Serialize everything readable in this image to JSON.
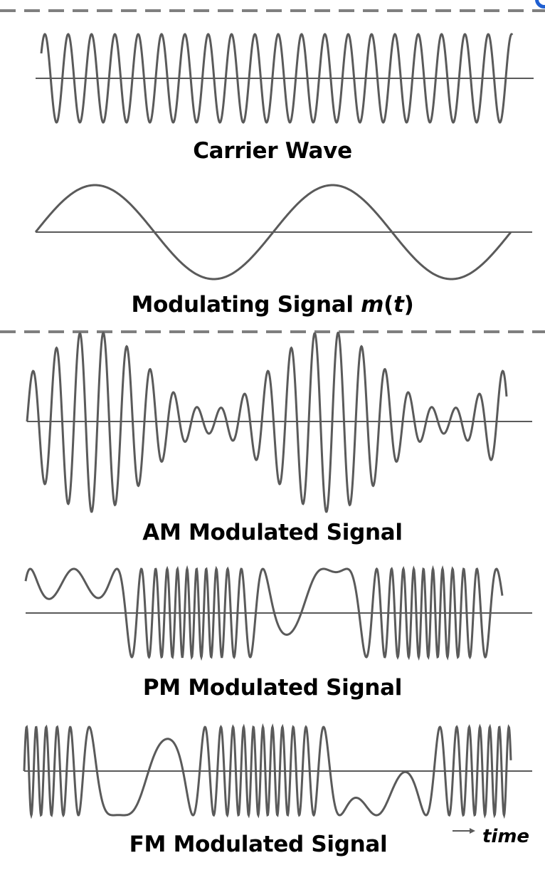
{
  "panels": {
    "carrier": {
      "label": "Carrier Wave"
    },
    "modulating": {
      "label_text": "Modulating Signal ",
      "label_m": "m",
      "label_open": "(",
      "label_t": "t",
      "label_close": ")"
    },
    "am": {
      "label": "AM Modulated Signal"
    },
    "pm": {
      "label": "PM Modulated Signal"
    },
    "fm": {
      "label": "FM Modulated Signal"
    }
  },
  "time_axis": {
    "label": "time"
  },
  "colors": {
    "wave": "#5a5a5a",
    "axis": "#5a5a5a",
    "divider": "#7f7f7f",
    "accent": "#1f5fd1"
  }
}
